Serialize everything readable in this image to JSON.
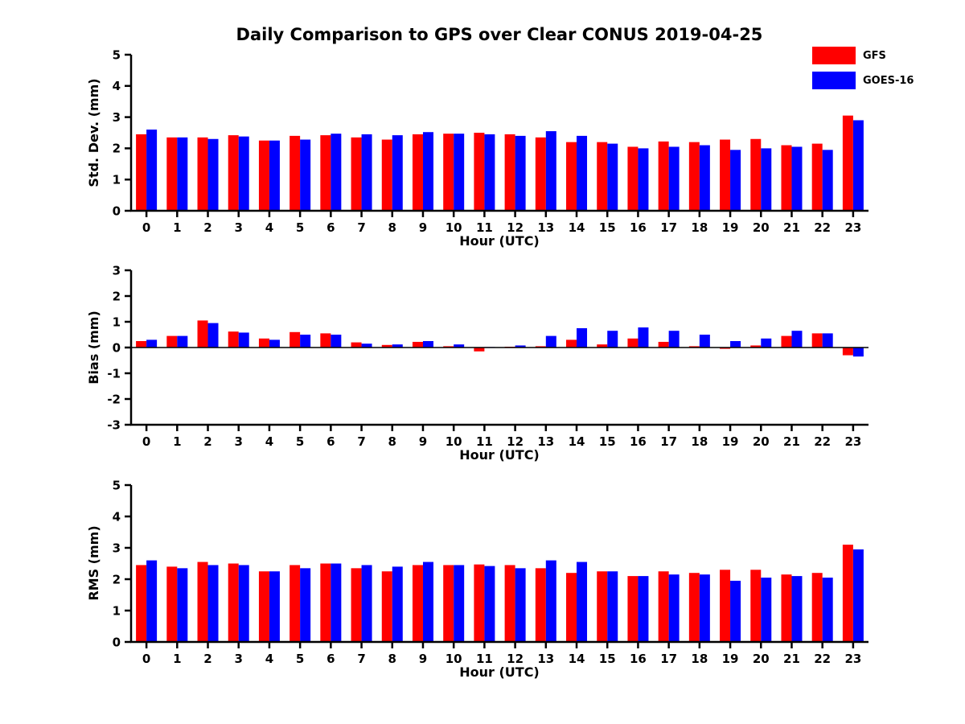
{
  "page": {
    "title": "Daily Comparison to GPS over Clear CONUS 2019-04-25"
  },
  "legend": {
    "items": [
      {
        "label": "GFS",
        "color": "#ff0000"
      },
      {
        "label": "GOES-16",
        "color": "#0000ff"
      }
    ]
  },
  "chart_data": [
    {
      "type": "bar",
      "panel": "std-dev",
      "xlabel": "Hour (UTC)",
      "ylabel": "Std. Dev. (mm)",
      "ylim": [
        0,
        5
      ],
      "yticks": [
        0,
        1,
        2,
        3,
        4,
        5
      ],
      "categories": [
        "0",
        "1",
        "2",
        "3",
        "4",
        "5",
        "6",
        "7",
        "8",
        "9",
        "10",
        "11",
        "12",
        "13",
        "14",
        "15",
        "16",
        "17",
        "18",
        "19",
        "20",
        "21",
        "22",
        "23"
      ],
      "series": [
        {
          "name": "GFS",
          "color": "#ff0000",
          "values": [
            2.45,
            2.35,
            2.35,
            2.42,
            2.25,
            2.4,
            2.42,
            2.35,
            2.28,
            2.45,
            2.47,
            2.5,
            2.45,
            2.35,
            2.2,
            2.2,
            2.05,
            2.22,
            2.2,
            2.28,
            2.3,
            2.1,
            2.15,
            3.05
          ]
        },
        {
          "name": "GOES-16",
          "color": "#0000ff",
          "values": [
            2.6,
            2.35,
            2.3,
            2.38,
            2.25,
            2.28,
            2.47,
            2.45,
            2.42,
            2.52,
            2.47,
            2.45,
            2.4,
            2.55,
            2.4,
            2.15,
            2.0,
            2.05,
            2.1,
            1.95,
            2.0,
            2.05,
            1.95,
            2.9
          ]
        }
      ]
    },
    {
      "type": "bar",
      "panel": "bias",
      "xlabel": "Hour (UTC)",
      "ylabel": "Bias (mm)",
      "ylim": [
        -3,
        3
      ],
      "yticks": [
        -3,
        -2,
        -1,
        0,
        1,
        2,
        3
      ],
      "categories": [
        "0",
        "1",
        "2",
        "3",
        "4",
        "5",
        "6",
        "7",
        "8",
        "9",
        "10",
        "11",
        "12",
        "13",
        "14",
        "15",
        "16",
        "17",
        "18",
        "19",
        "20",
        "21",
        "22",
        "23"
      ],
      "series": [
        {
          "name": "GFS",
          "color": "#ff0000",
          "values": [
            0.25,
            0.45,
            1.05,
            0.62,
            0.35,
            0.6,
            0.55,
            0.2,
            0.1,
            0.22,
            0.05,
            -0.15,
            0.03,
            0.05,
            0.3,
            0.12,
            0.35,
            0.22,
            0.05,
            -0.05,
            0.08,
            0.45,
            0.55,
            -0.3
          ]
        },
        {
          "name": "GOES-16",
          "color": "#0000ff",
          "values": [
            0.3,
            0.45,
            0.95,
            0.58,
            0.3,
            0.5,
            0.5,
            0.15,
            0.12,
            0.25,
            0.12,
            0.02,
            0.08,
            0.45,
            0.75,
            0.65,
            0.78,
            0.65,
            0.5,
            0.25,
            0.35,
            0.65,
            0.55,
            -0.35
          ]
        }
      ]
    },
    {
      "type": "bar",
      "panel": "rms",
      "xlabel": "Hour (UTC)",
      "ylabel": "RMS (mm)",
      "ylim": [
        0,
        5
      ],
      "yticks": [
        0,
        1,
        2,
        3,
        4,
        5
      ],
      "categories": [
        "0",
        "1",
        "2",
        "3",
        "4",
        "5",
        "6",
        "7",
        "8",
        "9",
        "10",
        "11",
        "12",
        "13",
        "14",
        "15",
        "16",
        "17",
        "18",
        "19",
        "20",
        "21",
        "22",
        "23"
      ],
      "series": [
        {
          "name": "GFS",
          "color": "#ff0000",
          "values": [
            2.45,
            2.4,
            2.55,
            2.5,
            2.25,
            2.45,
            2.5,
            2.35,
            2.25,
            2.45,
            2.45,
            2.47,
            2.45,
            2.35,
            2.2,
            2.25,
            2.1,
            2.25,
            2.2,
            2.3,
            2.3,
            2.15,
            2.2,
            3.1
          ]
        },
        {
          "name": "GOES-16",
          "color": "#0000ff",
          "values": [
            2.6,
            2.35,
            2.45,
            2.45,
            2.25,
            2.35,
            2.5,
            2.45,
            2.4,
            2.55,
            2.45,
            2.42,
            2.35,
            2.6,
            2.55,
            2.25,
            2.1,
            2.15,
            2.15,
            1.95,
            2.05,
            2.1,
            2.05,
            2.95
          ]
        }
      ]
    }
  ]
}
